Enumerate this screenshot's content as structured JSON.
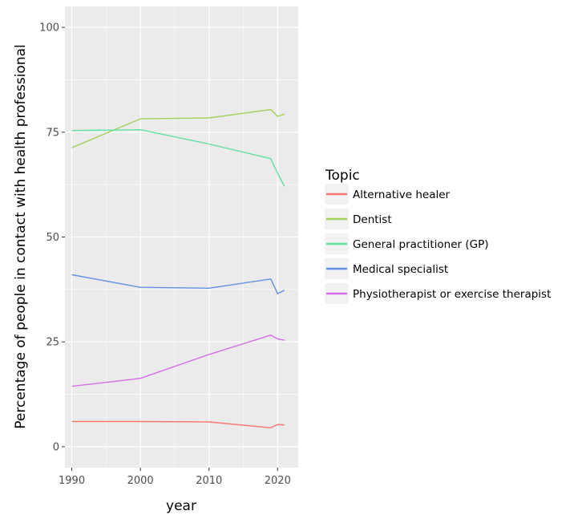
{
  "chart_data": {
    "type": "line",
    "title": "",
    "xlabel": "year",
    "ylabel": "Percentage of people in contact with health professional",
    "xlim": [
      1989,
      2023
    ],
    "ylim": [
      -5,
      105
    ],
    "xticks": [
      1990,
      2000,
      2010,
      2020
    ],
    "yticks": [
      0,
      25,
      50,
      75,
      100
    ],
    "grid": true,
    "legend": {
      "title": "Topic",
      "placement": "right"
    },
    "series": [
      {
        "name": "Alternative healer",
        "color": "#F8766D",
        "x": [
          1990,
          2000,
          2010,
          2019,
          2020,
          2021
        ],
        "y": [
          6.0,
          6.0,
          5.9,
          4.5,
          5.3,
          5.2
        ]
      },
      {
        "name": "Dentist",
        "color": "#A3D15A",
        "x": [
          1990,
          2000,
          2010,
          2019,
          2020,
          2021
        ],
        "y": [
          71.3,
          78.2,
          78.4,
          80.4,
          78.8,
          79.3
        ]
      },
      {
        "name": "General practitioner (GP)",
        "color": "#5FE0A0",
        "x": [
          1990,
          2000,
          2010,
          2019,
          2020,
          2021
        ],
        "y": [
          75.4,
          75.6,
          72.2,
          68.7,
          65.2,
          62.1
        ]
      },
      {
        "name": "Medical specialist",
        "color": "#6291E3",
        "x": [
          1990,
          2000,
          2010,
          2019,
          2020,
          2021
        ],
        "y": [
          41.0,
          38.0,
          37.8,
          40.0,
          36.5,
          37.3
        ]
      },
      {
        "name": "Physiotherapist or exercise therapist",
        "color": "#D66CE8",
        "x": [
          1990,
          2000,
          2010,
          2019,
          2020,
          2021
        ],
        "y": [
          14.4,
          16.3,
          22.0,
          26.6,
          25.7,
          25.4
        ]
      }
    ]
  }
}
